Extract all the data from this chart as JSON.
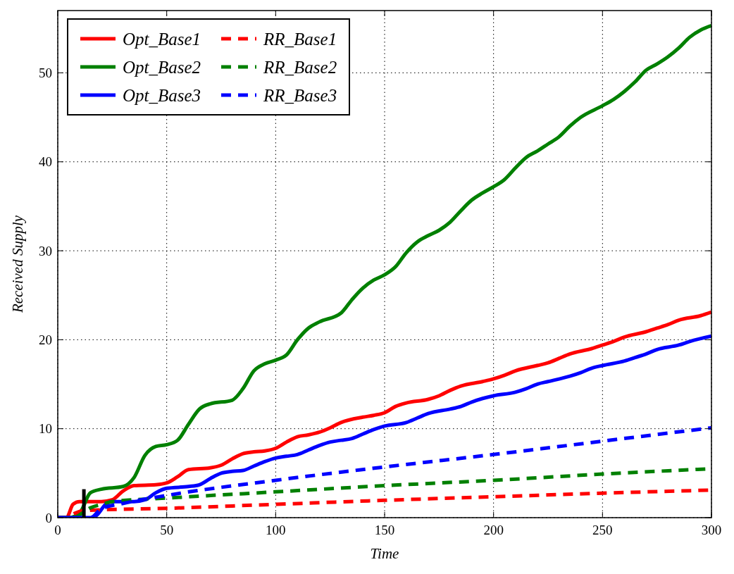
{
  "chart_data": {
    "type": "line",
    "xlabel": "Time",
    "ylabel": "Received Supply",
    "xlim": [
      0,
      300
    ],
    "ylim": [
      0,
      57
    ],
    "xticks": [
      0,
      50,
      100,
      150,
      200,
      250,
      300
    ],
    "yticks": [
      0,
      10,
      20,
      30,
      40,
      50
    ],
    "grid": true,
    "legend": "top left",
    "series": [
      {
        "name": "Opt_Base1",
        "color": "#ff0000",
        "line_style": "solid",
        "x": [
          0,
          4,
          7,
          10,
          20,
          25,
          30,
          35,
          45,
          50,
          55,
          60,
          70,
          75,
          80,
          85,
          90,
          95,
          100,
          105,
          110,
          115,
          120,
          125,
          130,
          140,
          145,
          150,
          155,
          160,
          170,
          175,
          180,
          185,
          195,
          200,
          205,
          210,
          220,
          225,
          230,
          235,
          245,
          250,
          255,
          260,
          270,
          275,
          280,
          285,
          295,
          300
        ],
        "values": [
          0,
          0,
          1.5,
          1.8,
          1.8,
          2.0,
          3.0,
          3.6,
          3.7,
          3.9,
          4.6,
          5.4,
          5.6,
          5.9,
          6.6,
          7.2,
          7.4,
          7.5,
          7.8,
          8.5,
          9.1,
          9.3,
          9.6,
          10.1,
          10.7,
          11.3,
          11.5,
          11.8,
          12.5,
          12.9,
          13.3,
          13.7,
          14.3,
          14.8,
          15.3,
          15.6,
          16.0,
          16.5,
          17.1,
          17.4,
          17.9,
          18.4,
          19.0,
          19.4,
          19.8,
          20.3,
          20.9,
          21.3,
          21.7,
          22.2,
          22.7,
          23.1
        ]
      },
      {
        "name": "Opt_Base2",
        "color": "#008000",
        "line_style": "solid",
        "x": [
          0,
          5,
          10,
          15,
          20,
          30,
          35,
          40,
          45,
          50,
          55,
          60,
          65,
          70,
          80,
          85,
          90,
          95,
          100,
          105,
          110,
          115,
          120,
          130,
          135,
          140,
          145,
          150,
          155,
          160,
          165,
          170,
          175,
          180,
          185,
          190,
          195,
          200,
          205,
          210,
          215,
          220,
          225,
          230,
          235,
          240,
          250,
          255,
          260,
          265,
          270,
          275,
          280,
          285,
          290,
          295,
          300
        ],
        "values": [
          0,
          0,
          0.5,
          2.8,
          3.2,
          3.5,
          4.5,
          7.0,
          8.0,
          8.2,
          8.7,
          10.5,
          12.2,
          12.8,
          13.2,
          14.5,
          16.5,
          17.3,
          17.7,
          18.3,
          20.0,
          21.3,
          22.0,
          23.0,
          24.5,
          25.8,
          26.7,
          27.3,
          28.2,
          29.8,
          31.0,
          31.7,
          32.3,
          33.2,
          34.5,
          35.7,
          36.5,
          37.2,
          38.0,
          39.3,
          40.5,
          41.2,
          42.0,
          42.8,
          44.0,
          45.0,
          46.3,
          47.0,
          47.9,
          49.0,
          50.3,
          51.0,
          51.8,
          52.8,
          54.0,
          54.8,
          55.3
        ]
      },
      {
        "name": "Opt_Base3",
        "color": "#0000ff",
        "line_style": "solid",
        "x": [
          0,
          15,
          18,
          22,
          25,
          35,
          40,
          45,
          50,
          60,
          65,
          70,
          75,
          80,
          85,
          90,
          95,
          100,
          105,
          110,
          115,
          120,
          125,
          130,
          135,
          140,
          145,
          150,
          160,
          165,
          170,
          180,
          185,
          190,
          195,
          200,
          210,
          215,
          220,
          225,
          235,
          240,
          245,
          250,
          260,
          265,
          270,
          275,
          285,
          290,
          300
        ],
        "values": [
          0,
          0,
          0.3,
          1.5,
          1.8,
          1.8,
          2.0,
          2.8,
          3.3,
          3.5,
          3.7,
          4.4,
          5.0,
          5.2,
          5.3,
          5.8,
          6.3,
          6.7,
          6.9,
          7.1,
          7.6,
          8.1,
          8.5,
          8.7,
          8.9,
          9.4,
          9.9,
          10.3,
          10.7,
          11.2,
          11.7,
          12.2,
          12.5,
          13.0,
          13.4,
          13.7,
          14.1,
          14.5,
          15.0,
          15.3,
          15.9,
          16.3,
          16.8,
          17.1,
          17.6,
          18.0,
          18.4,
          18.9,
          19.4,
          19.8,
          20.4
        ]
      },
      {
        "name": "RR_Base1",
        "color": "#ff0000",
        "line_style": "dashed",
        "x": [
          0,
          4,
          8,
          12,
          50,
          100,
          150,
          200,
          250,
          300
        ],
        "values": [
          0,
          0,
          0.5,
          0.8,
          1.05,
          1.5,
          1.95,
          2.35,
          2.75,
          3.1
        ]
      },
      {
        "name": "RR_Base2",
        "color": "#008000",
        "line_style": "dashed",
        "x": [
          0,
          8,
          10,
          15,
          20,
          25,
          50,
          100,
          150,
          200,
          250,
          300
        ],
        "values": [
          0,
          0,
          0.3,
          1.1,
          1.5,
          1.8,
          2.2,
          2.9,
          3.6,
          4.2,
          4.9,
          5.5
        ]
      },
      {
        "name": "RR_Base3",
        "color": "#0000ff",
        "line_style": "dashed",
        "x": [
          0,
          15,
          20,
          30,
          50,
          100,
          150,
          200,
          250,
          300
        ],
        "values": [
          0,
          0,
          1.0,
          1.6,
          2.5,
          4.2,
          5.7,
          7.1,
          8.6,
          10.1
        ]
      },
      {
        "color": "#000000",
        "line_style": "solid",
        "x": [
          12,
          12
        ],
        "values": [
          0,
          3.2
        ]
      }
    ]
  }
}
